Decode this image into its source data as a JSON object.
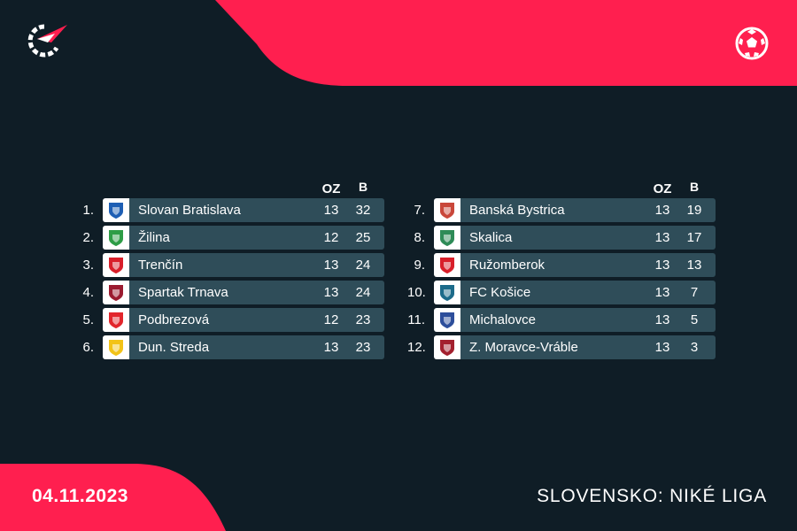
{
  "colors": {
    "background": "#0f1d26",
    "accent": "#ff1f4f",
    "row": "#2f4d59"
  },
  "header": {
    "logo_icon": "flashscore-logo-icon",
    "sport_icon": "football-icon"
  },
  "columns": {
    "played": "OZ",
    "points": "B"
  },
  "standings_left": [
    {
      "pos": "1.",
      "team": "Slovan Bratislava",
      "played": "13",
      "points": "32",
      "crest_color": "#1e5fb4"
    },
    {
      "pos": "2.",
      "team": "Žilina",
      "played": "12",
      "points": "25",
      "crest_color": "#2e9d46"
    },
    {
      "pos": "3.",
      "team": "Trenčín",
      "played": "13",
      "points": "24",
      "crest_color": "#d81f2a"
    },
    {
      "pos": "4.",
      "team": "Spartak Trnava",
      "played": "13",
      "points": "24",
      "crest_color": "#9b1b30"
    },
    {
      "pos": "5.",
      "team": "Podbrezová",
      "played": "12",
      "points": "23",
      "crest_color": "#e2262c"
    },
    {
      "pos": "6.",
      "team": "Dun. Streda",
      "played": "13",
      "points": "23",
      "crest_color": "#f2c318"
    }
  ],
  "standings_right": [
    {
      "pos": "7.",
      "team": "Banská Bystrica",
      "played": "13",
      "points": "19",
      "crest_color": "#c9473a"
    },
    {
      "pos": "8.",
      "team": "Skalica",
      "played": "13",
      "points": "17",
      "crest_color": "#2e8b57"
    },
    {
      "pos": "9.",
      "team": "Ružomberok",
      "played": "13",
      "points": "13",
      "crest_color": "#d81f2a"
    },
    {
      "pos": "10.",
      "team": "FC Košice",
      "played": "13",
      "points": "7",
      "crest_color": "#1c6b8a"
    },
    {
      "pos": "11.",
      "team": "Michalovce",
      "played": "13",
      "points": "5",
      "crest_color": "#2d4e9b"
    },
    {
      "pos": "12.",
      "team": "Z. Moravce-Vráble",
      "played": "13",
      "points": "3",
      "crest_color": "#a3202e"
    }
  ],
  "footer": {
    "date": "04.11.2023",
    "league": "SLOVENSKO: NIKÉ LIGA"
  }
}
